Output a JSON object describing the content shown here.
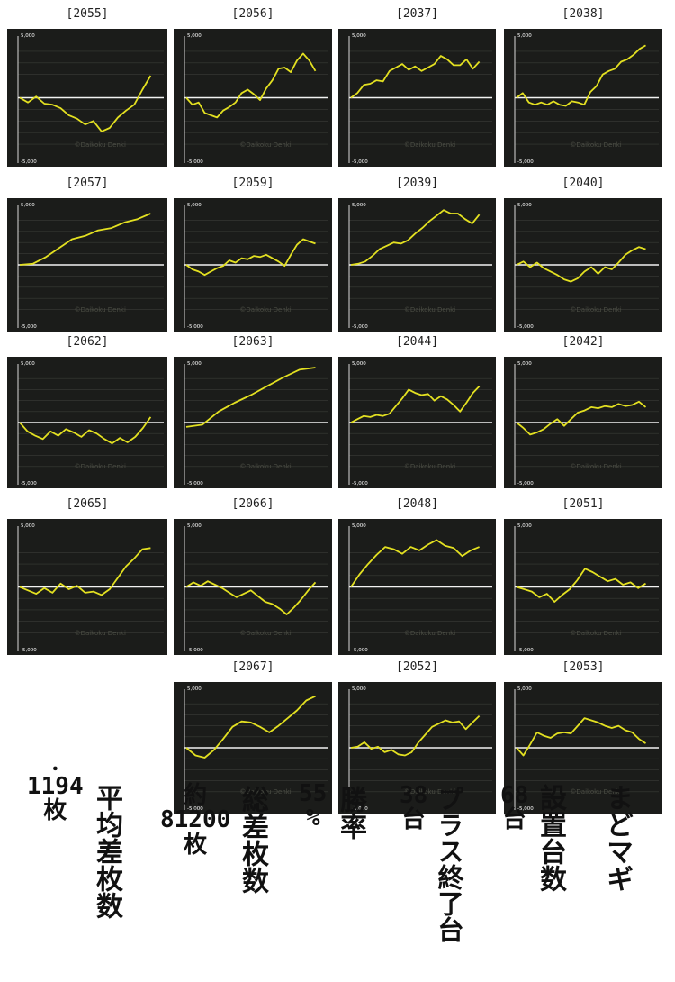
{
  "chart_data": [
    {
      "type": "line",
      "title": "[2055]",
      "ylim": [
        -5000,
        5000
      ],
      "yticks": [
        "5,000",
        "-5,000"
      ],
      "watermark": "©Daikoku Denki",
      "y": [
        0,
        -400,
        100,
        -500,
        -600,
        -900,
        -1500,
        -1800,
        -2300,
        -2000,
        -2900,
        -2600,
        -1700,
        -1100,
        -600,
        700,
        1900
      ]
    },
    {
      "type": "line",
      "title": "[2056]",
      "ylim": [
        -5000,
        5000
      ],
      "yticks": [
        "5,000",
        "-5,000"
      ],
      "watermark": "©Daikoku Denki",
      "y": [
        0,
        -600,
        -400,
        -1300,
        -1500,
        -1700,
        -1100,
        -800,
        -400,
        400,
        700,
        300,
        -200,
        800,
        1500,
        2500,
        2600,
        2200,
        3200,
        3800,
        3200,
        2300
      ]
    },
    {
      "type": "line",
      "title": "[2037]",
      "ylim": [
        -5000,
        5000
      ],
      "yticks": [
        "5,000",
        "-5,000"
      ],
      "watermark": "©Daikoku Denki",
      "y": [
        0,
        400,
        1100,
        1200,
        1500,
        1400,
        2300,
        2600,
        2900,
        2400,
        2700,
        2300,
        2600,
        2900,
        3600,
        3300,
        2800,
        2800,
        3300,
        2500,
        3100
      ]
    },
    {
      "type": "line",
      "title": "[2038]",
      "ylim": [
        -5000,
        5000
      ],
      "yticks": [
        "5,000",
        "-5,000"
      ],
      "watermark": "©Daikoku Denki",
      "y": [
        0,
        400,
        -400,
        -600,
        -400,
        -600,
        -300,
        -600,
        -700,
        -300,
        -400,
        -600,
        500,
        1000,
        2000,
        2300,
        2500,
        3100,
        3300,
        3700,
        4200,
        4500
      ]
    },
    {
      "type": "line",
      "title": "[2057]",
      "ylim": [
        -5000,
        5000
      ],
      "yticks": [
        "5,000",
        "-5,000"
      ],
      "watermark": "©Daikoku Denki",
      "y": [
        0,
        100,
        700,
        1500,
        2300,
        2600,
        3100,
        3300,
        3800,
        4100,
        4600
      ]
    },
    {
      "type": "line",
      "title": "[2059]",
      "ylim": [
        -5000,
        5000
      ],
      "yticks": [
        "5,000",
        "-5,000"
      ],
      "watermark": "©Daikoku Denki",
      "y": [
        0,
        -400,
        -600,
        -900,
        -600,
        -300,
        -100,
        400,
        200,
        600,
        500,
        800,
        700,
        900,
        600,
        300,
        -100,
        900,
        1800,
        2300,
        2100,
        1900
      ]
    },
    {
      "type": "line",
      "title": "[2039]",
      "ylim": [
        -5000,
        5000
      ],
      "yticks": [
        "5,000",
        "-5,000"
      ],
      "watermark": "©Daikoku Denki",
      "y": [
        0,
        100,
        300,
        800,
        1400,
        1700,
        2000,
        1900,
        2200,
        2800,
        3300,
        3900,
        4400,
        4900,
        4600,
        4600,
        4100,
        3700,
        4500
      ]
    },
    {
      "type": "line",
      "title": "[2040]",
      "ylim": [
        -5000,
        5000
      ],
      "yticks": [
        "5,000",
        "-5,000"
      ],
      "watermark": "©Daikoku Denki",
      "y": [
        0,
        300,
        -200,
        200,
        -300,
        -600,
        -900,
        -1300,
        -1500,
        -1200,
        -600,
        -200,
        -800,
        -200,
        -400,
        200,
        900,
        1300,
        1600,
        1400
      ]
    },
    {
      "type": "line",
      "title": "[2062]",
      "ylim": [
        -5000,
        5000
      ],
      "yticks": [
        "5,000",
        "-5,000"
      ],
      "watermark": "©Daikoku Denki",
      "y": [
        0,
        -800,
        -1200,
        -1500,
        -800,
        -1200,
        -600,
        -900,
        -1300,
        -700,
        -1000,
        -1500,
        -1900,
        -1400,
        -1800,
        -1300,
        -500,
        500
      ]
    },
    {
      "type": "line",
      "title": "[2063]",
      "ylim": [
        -5000,
        5000
      ],
      "yticks": [
        "5,000",
        "-5,000"
      ],
      "watermark": "©Daikoku Denki",
      "y": [
        -400,
        -200,
        1000,
        1800,
        2500,
        3300,
        4100,
        4800,
        5500
      ]
    },
    {
      "type": "line",
      "title": "[2044]",
      "ylim": [
        -5000,
        5000
      ],
      "yticks": [
        "5,000",
        "-5,000"
      ],
      "watermark": "©Daikoku Denki",
      "y": [
        0,
        300,
        600,
        500,
        700,
        600,
        800,
        1500,
        2200,
        3000,
        2700,
        2500,
        2600,
        2000,
        2400,
        2100,
        1600,
        1000,
        1800,
        2700,
        3300
      ]
    },
    {
      "type": "line",
      "title": "[2042]",
      "ylim": [
        -5000,
        5000
      ],
      "yticks": [
        "5,000",
        "-5,000"
      ],
      "watermark": "©Daikoku Denki",
      "y": [
        0,
        -500,
        -1100,
        -900,
        -600,
        -100,
        300,
        -300,
        300,
        900,
        1100,
        1400,
        1300,
        1500,
        1400,
        1700,
        1500,
        1600,
        1900,
        1400
      ]
    },
    {
      "type": "line",
      "title": "[2065]",
      "ylim": [
        -5000,
        5000
      ],
      "yticks": [
        "5,000",
        "-5,000"
      ],
      "watermark": "©Daikoku Denki",
      "y": [
        0,
        -300,
        -600,
        -100,
        -500,
        300,
        -200,
        100,
        -500,
        -400,
        -700,
        -200,
        800,
        1800,
        2500,
        3300,
        3400
      ]
    },
    {
      "type": "line",
      "title": "[2066]",
      "ylim": [
        -5000,
        5000
      ],
      "yticks": [
        "5,000",
        "-5,000"
      ],
      "watermark": "©Daikoku Denki",
      "y": [
        0,
        400,
        100,
        500,
        200,
        -100,
        -500,
        -900,
        -600,
        -300,
        -800,
        -1300,
        -1500,
        -1900,
        -2400,
        -1800,
        -1100,
        -300,
        400
      ]
    },
    {
      "type": "line",
      "title": "[2048]",
      "ylim": [
        -5000,
        5000
      ],
      "yticks": [
        "5,000",
        "-5,000"
      ],
      "watermark": "©Daikoku Denki",
      "y": [
        0,
        1100,
        2000,
        2800,
        3500,
        3300,
        2900,
        3500,
        3200,
        3700,
        4100,
        3600,
        3400,
        2700,
        3200,
        3500
      ]
    },
    {
      "type": "line",
      "title": "[2051]",
      "ylim": [
        -5000,
        5000
      ],
      "yticks": [
        "5,000",
        "-5,000"
      ],
      "watermark": "©Daikoku Denki",
      "y": [
        0,
        -200,
        -400,
        -900,
        -600,
        -1300,
        -700,
        -200,
        600,
        1600,
        1300,
        900,
        500,
        700,
        200,
        400,
        -100,
        300
      ]
    },
    {
      "type": "line",
      "title": "[2067]",
      "ylim": [
        -5000,
        5000
      ],
      "yticks": [
        "5,000",
        "-5,000"
      ],
      "watermark": "©Daikoku Denki",
      "y": [
        0,
        -700,
        -900,
        -200,
        800,
        1900,
        2400,
        2300,
        1900,
        1400,
        2000,
        2700,
        3400,
        4300,
        4700
      ]
    },
    {
      "type": "line",
      "title": "[2052]",
      "ylim": [
        -5000,
        5000
      ],
      "yticks": [
        "5,000",
        "-5,000"
      ],
      "watermark": "©Daikoku Denki",
      "y": [
        0,
        100,
        500,
        -100,
        100,
        -400,
        -200,
        -600,
        -700,
        -400,
        500,
        1200,
        1900,
        2200,
        2500,
        2300,
        2400,
        1700,
        2300,
        2900
      ]
    },
    {
      "type": "line",
      "title": "[2053]",
      "ylim": [
        -5000,
        5000
      ],
      "yticks": [
        "5,000",
        "-5,000"
      ],
      "watermark": "©Daikoku Denki",
      "y": [
        0,
        -700,
        300,
        1400,
        1100,
        900,
        1300,
        1400,
        1300,
        2000,
        2700,
        2500,
        2300,
        2000,
        1800,
        2000,
        1600,
        1400,
        800,
        400
      ]
    }
  ],
  "summary": {
    "avg_value": "1194",
    "avg_unit": "枚",
    "avg_label": "平均差枚数",
    "total_prefix": "約",
    "total_value": "81200",
    "total_unit": "枚",
    "total_label": "総差枚数",
    "win_value": "55",
    "win_unit": "%",
    "win_label": "勝率",
    "plus_value": "38",
    "plus_unit": "台",
    "plus_label": "プラス終了台",
    "machines_value": "68",
    "machines_unit": "台",
    "machines_label": "設置台数",
    "machine_name": "まどマギ"
  }
}
